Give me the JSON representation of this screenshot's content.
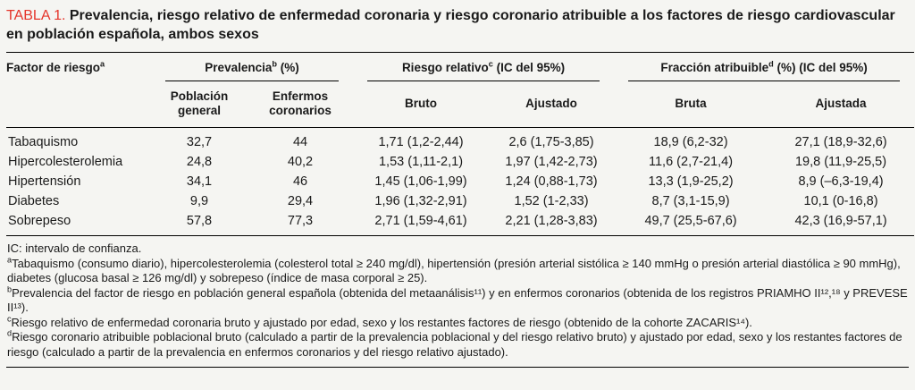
{
  "colors": {
    "accent_red": "#e5352b",
    "text": "#1a1a1a",
    "background": "#f5f5f2"
  },
  "title": {
    "label": "TABLA 1.",
    "caption": "Prevalencia, riesgo relativo de enfermedad coronaria y riesgo coronario atribuible a los factores de riesgo cardiovascular en población española, ambos sexos"
  },
  "table": {
    "row_header": {
      "label": "Factor de riesgo",
      "sup": "a"
    },
    "groups": [
      {
        "label": "Prevalencia",
        "sup": "b",
        "rest": " (%)",
        "cols": [
          "Población\ngeneral",
          "Enfermos\ncoronarios"
        ]
      },
      {
        "label": "Riesgo relativo",
        "sup": "c",
        "rest": " (IC del 95%)",
        "cols": [
          "Bruto",
          "Ajustado"
        ]
      },
      {
        "label": "Fracción atribuible",
        "sup": "d",
        "rest": " (%) (IC del 95%)",
        "cols": [
          "Bruta",
          "Ajustada"
        ]
      }
    ],
    "rows": [
      {
        "factor": "Tabaquismo",
        "values": [
          "32,7",
          "44",
          "1,71 (1,2-2,44)",
          "2,6 (1,75-3,85)",
          "18,9 (6,2-32)",
          "27,1 (18,9-32,6)"
        ]
      },
      {
        "factor": "Hipercolesterolemia",
        "values": [
          "24,8",
          "40,2",
          "1,53 (1,11-2,1)",
          "1,97 (1,42-2,73)",
          "11,6 (2,7-21,4)",
          "19,8 (11,9-25,5)"
        ]
      },
      {
        "factor": "Hipertensión",
        "values": [
          "34,1",
          "46",
          "1,45 (1,06-1,99)",
          "1,24 (0,88-1,73)",
          "13,3 (1,9-25,2)",
          "8,9 (–6,3-19,4)"
        ]
      },
      {
        "factor": "Diabetes",
        "values": [
          "9,9",
          "29,4",
          "1,96 (1,32-2,91)",
          "1,52 (1-2,33)",
          "8,7 (3,1-15,9)",
          "10,1 (0-16,8)"
        ]
      },
      {
        "factor": "Sobrepeso",
        "values": [
          "57,8",
          "77,3",
          "2,71 (1,59-4,61)",
          "2,21 (1,28-3,83)",
          "49,7 (25,5-67,6)",
          "42,3 (16,9-57,1)"
        ]
      }
    ]
  },
  "footnotes": [
    {
      "sup": "",
      "text": "IC: intervalo de confianza."
    },
    {
      "sup": "a",
      "text": "Tabaquismo (consumo diario), hipercolesterolemia (colesterol total ≥ 240 mg/dl), hipertensión (presión arterial sistólica ≥ 140 mmHg o presión arterial diastólica ≥ 90 mmHg), diabetes (glucosa basal ≥ 126 mg/dl) y sobrepeso (índice de masa corporal ≥ 25)."
    },
    {
      "sup": "b",
      "text": "Prevalencia del factor de riesgo en población general española (obtenida del metaanálisis¹¹) y en enfermos coronarios (obtenida de los registros PRIAMHO II¹²,¹⁸ y PREVESE II¹³)."
    },
    {
      "sup": "c",
      "text": "Riesgo relativo de enfermedad coronaria bruto y ajustado por edad, sexo y los restantes factores de riesgo (obtenido de la cohorte ZACARIS¹⁴)."
    },
    {
      "sup": "d",
      "text": "Riesgo coronario atribuible poblacional bruto (calculado a partir de la prevalencia poblacional y del riesgo relativo bruto) y ajustado por edad, sexo y los restantes factores de riesgo (calculado a partir de la prevalencia en enfermos coronarios y del riesgo relativo ajustado)."
    }
  ]
}
